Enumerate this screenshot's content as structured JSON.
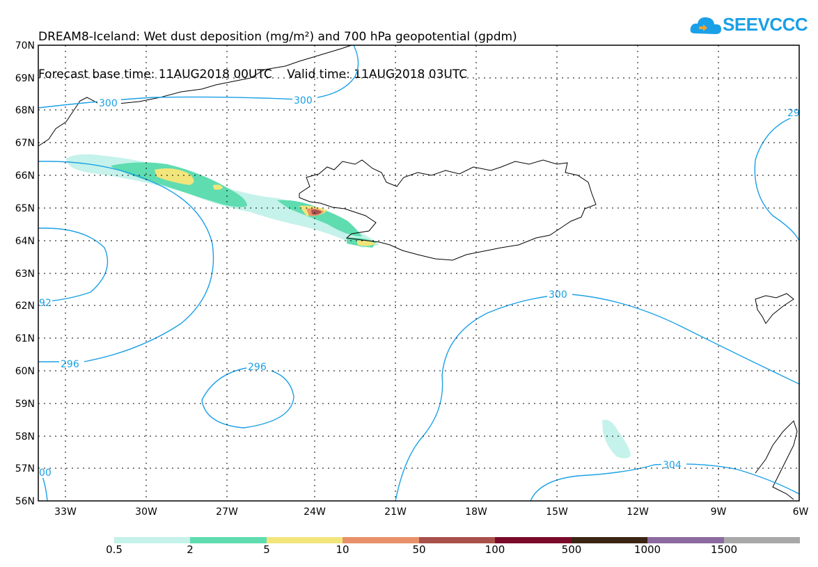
{
  "header": {
    "title_line1": "DREAM8-Iceland: Wet dust deposition (mg/m²) and 700 hPa geopotential (gpdm)",
    "title_line2": "Forecast base time: 11AUG2018 00UTC    Valid time: 11AUG2018 03UTC"
  },
  "logo": {
    "text": "SEEVCCC",
    "icon": "cloud-icon"
  },
  "axes": {
    "lat_labels": [
      "70N",
      "69N",
      "68N",
      "67N",
      "66N",
      "65N",
      "64N",
      "63N",
      "62N",
      "61N",
      "60N",
      "59N",
      "58N",
      "57N",
      "56N"
    ],
    "lon_labels": [
      "33W",
      "30W",
      "27W",
      "24W",
      "21W",
      "18W",
      "15W",
      "12W",
      "9W",
      "6W"
    ]
  },
  "contour_labels": [
    "300",
    "300",
    "29",
    "92",
    "296",
    "296",
    "300",
    "00",
    "304"
  ],
  "legend": {
    "labels": [
      "0.5",
      "2",
      "5",
      "10",
      "50",
      "100",
      "500",
      "1000",
      "1500"
    ],
    "colors": [
      "#c5f2ea",
      "#5fdcb0",
      "#f2e57c",
      "#e8906a",
      "#a8504a",
      "#7a0a2a",
      "#3a2414",
      "#8b6aa0",
      "#a8a8a8"
    ]
  },
  "colors": {
    "contour": "#1aa0e6",
    "coast": "#000000"
  }
}
